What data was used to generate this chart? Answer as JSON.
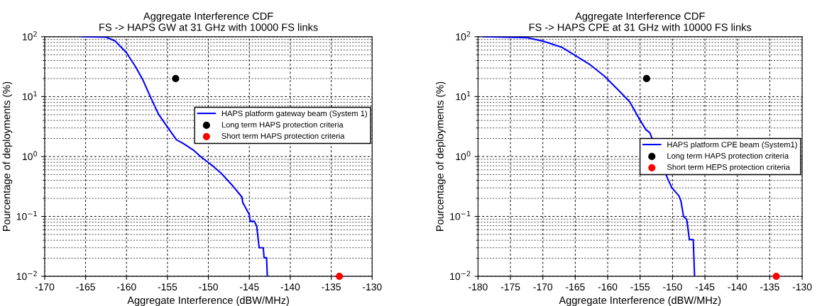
{
  "chart_data": [
    {
      "type": "line",
      "title": "Aggregate Interference CDF",
      "subtitle": "FS -> HAPS GW at 31 GHz with 10000 FS links",
      "xlabel": "Aggregate Interference (dBW/MHz)",
      "ylabel": "Pourcentage of deployments (%)",
      "log": "y",
      "grid": true,
      "legend": "right",
      "xlim": [
        -170,
        -130
      ],
      "xticks": [
        -170,
        -165,
        -160,
        -155,
        -150,
        -145,
        -140,
        -135,
        -130
      ],
      "ylim": [
        0.01,
        100
      ],
      "yticks": [
        {
          "value": 0.01,
          "label": "10$^{−2}$"
        },
        {
          "value": 0.1,
          "label": "10$^{−1}$"
        },
        {
          "value": 1,
          "label": "10$^{0}$"
        },
        {
          "value": 10,
          "label": "10$^{1}$"
        },
        {
          "value": 100,
          "label": "10$^{2}$"
        }
      ],
      "series": [
        {
          "name": "HAPS platform gateway beam (System 1)",
          "color": "#0000ff",
          "marker": "none",
          "line_style": "solid",
          "x": [
            -165.5,
            -162.5,
            -161.4,
            -160,
            -158.9,
            -158,
            -157.1,
            -156.1,
            -155,
            -153.9,
            -153.1,
            -151.9,
            -150.8,
            -149.6,
            -148.4,
            -147,
            -145.9,
            -145.8,
            -145,
            -144.9,
            -144.4,
            -144.1,
            -143.8,
            -143.3,
            -143.2,
            -142.9,
            -142.8
          ],
          "values": [
            100,
            98,
            85,
            54,
            31.5,
            19,
            10,
            5.1,
            3.1,
            1.9,
            1.66,
            1.3,
            0.96,
            0.72,
            0.52,
            0.32,
            0.21,
            0.17,
            0.107,
            0.083,
            0.083,
            0.069,
            0.03,
            0.03,
            0.0204,
            0.0204,
            0.01
          ]
        },
        {
          "name": "Long term HAPS protection criteria",
          "type": "scatter",
          "color": "#000000",
          "marker": "circle",
          "x": [
            -154
          ],
          "values": [
            20
          ]
        },
        {
          "name": "Short term HAPS protection criteria",
          "type": "scatter",
          "color": "#ff0000",
          "marker": "circle",
          "x": [
            -134
          ],
          "values": [
            0.01
          ]
        }
      ]
    },
    {
      "type": "line",
      "title": "Aggregate Interference CDF",
      "subtitle": "FS -> HAPS CPE at 31 GHz with 10000 FS links",
      "xlabel": "Aggregate Interference (dBW/MHz)",
      "ylabel": "Pourcentage of deployments (%)",
      "log": "y",
      "grid": true,
      "legend": "right",
      "xlim": [
        -180,
        -130
      ],
      "xticks": [
        -180,
        -175,
        -170,
        -165,
        -160,
        -155,
        -150,
        -145,
        -140,
        -135,
        -130
      ],
      "ylim": [
        0.01,
        100
      ],
      "yticks": [
        {
          "value": 0.01,
          "label": "10$^{−2}$"
        },
        {
          "value": 0.1,
          "label": "10$^{−1}$"
        },
        {
          "value": 1,
          "label": "10$^{0}$"
        },
        {
          "value": 10,
          "label": "10$^{1}$"
        },
        {
          "value": 100,
          "label": "10$^{2}$"
        }
      ],
      "series": [
        {
          "name": "HAPS platform CPE beam (System1)",
          "color": "#0000ff",
          "marker": "none",
          "line_style": "solid",
          "x": [
            -179.2,
            -172.4,
            -169.9,
            -167,
            -164.9,
            -162.7,
            -160.5,
            -158.4,
            -156.6,
            -155.1,
            -154.1,
            -153.5,
            -150.8,
            -150.1,
            -149,
            -148.7,
            -148.3,
            -147.8,
            -147.4,
            -146.8,
            -146.6
          ],
          "values": [
            100,
            96.5,
            84,
            66,
            48,
            34,
            22,
            13,
            8.2,
            4.2,
            2.8,
            2.5,
            0.44,
            0.3,
            0.22,
            0.18,
            0.1,
            0.089,
            0.041,
            0.041,
            0.01
          ]
        },
        {
          "name": "Long term HAPS protection criteria",
          "type": "scatter",
          "color": "#000000",
          "marker": "circle",
          "x": [
            -154
          ],
          "values": [
            20
          ]
        },
        {
          "name": "Short term HEPS protection criteria",
          "type": "scatter",
          "color": "#ff0000",
          "marker": "circle",
          "x": [
            -134
          ],
          "values": [
            0.01
          ]
        }
      ]
    }
  ]
}
